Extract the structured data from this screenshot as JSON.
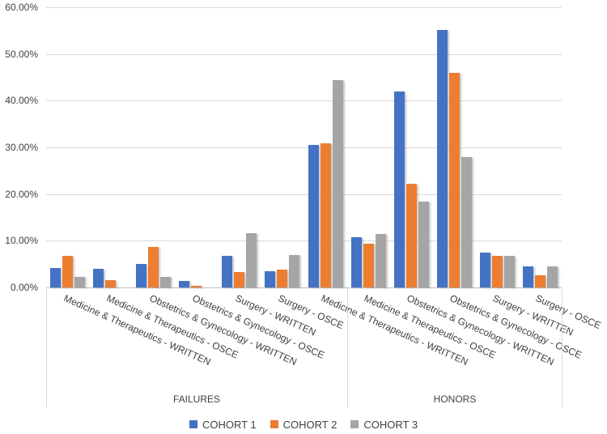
{
  "chart_data": {
    "type": "bar",
    "title": "",
    "y_axis": {
      "min": 0,
      "max": 60,
      "tick_step": 10,
      "format": "percent",
      "tick_labels": [
        "0.00%",
        "10.00%",
        "20.00%",
        "30.00%",
        "40.00%",
        "50.00%",
        "60.00%"
      ]
    },
    "categories": [
      "Medicine & Therapeutics - WRITTEN",
      "Medicine & Therapeutics - OSCE",
      "Obstetrics & Gynecology - WRITTEN",
      "Obstetrics & Gynecology - OSCE",
      "Surgery - WRITTEN",
      "Surgery - OSCE",
      "Medicine & Therapeutics - WRITTEN",
      "Medicine & Therapeutics - OSCE",
      "Obstetrics & Gynecology - WRITTEN",
      "Obstetrics & Gynecology - OSCE",
      "Surgery - WRITTEN",
      "Surgery - OSCE"
    ],
    "series": [
      {
        "name": "COHORT 1",
        "color": "#4472C4",
        "values": [
          4.2,
          4.0,
          5.1,
          1.4,
          6.8,
          3.5,
          30.6,
          10.8,
          41.9,
          55.2,
          7.5,
          4.5
        ]
      },
      {
        "name": "COHORT 2",
        "color": "#ED7D31",
        "values": [
          6.7,
          1.5,
          8.6,
          0.4,
          3.3,
          3.9,
          30.9,
          9.3,
          22.2,
          45.9,
          6.7,
          2.6
        ]
      },
      {
        "name": "COHORT 3",
        "color": "#A5A5A5",
        "values": [
          2.2,
          0,
          2.3,
          0,
          11.7,
          7.0,
          44.4,
          11.5,
          18.4,
          27.9,
          6.8,
          4.5
        ]
      }
    ],
    "groups": [
      {
        "label": "FAILURES",
        "from_slot": 0,
        "to_slot": 7
      },
      {
        "label": "HONORS",
        "from_slot": 7,
        "to_slot": 12
      }
    ],
    "legend": {
      "position": "bottom",
      "items": [
        "COHORT 1",
        "COHORT 2",
        "COHORT 3"
      ]
    },
    "grid": "horizontal",
    "gridline_color": "#D9D9D9",
    "axis_line_color": "#BFBFBF",
    "text_color": "#404040"
  }
}
